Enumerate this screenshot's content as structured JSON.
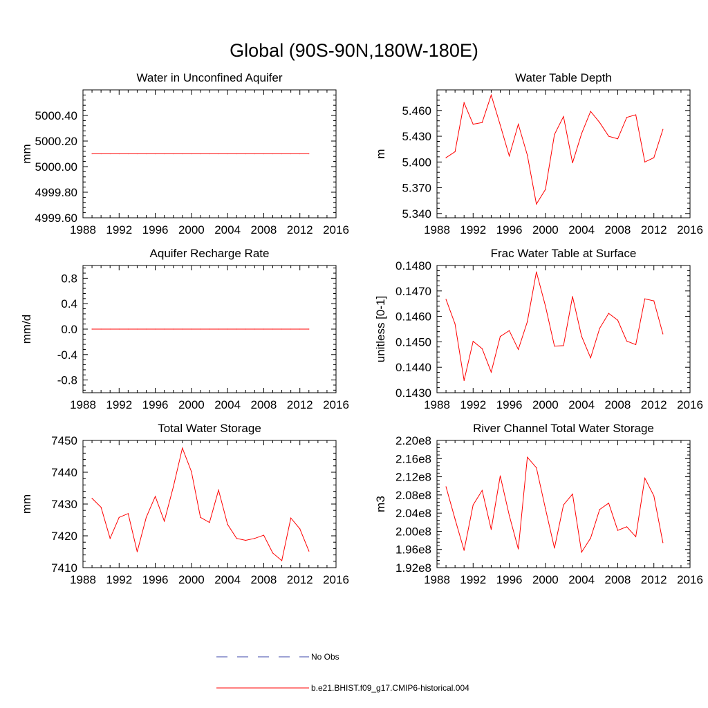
{
  "page_title": "Global (90S-90N,180W-180E)",
  "legend": {
    "position": "bottom",
    "entries": [
      {
        "label": "No Obs",
        "color": "#3b45a8",
        "dash": "dashed"
      },
      {
        "label": "b.e21.BHIST.f09_g17.CMIP6-historical.004",
        "color": "#ff0000",
        "dash": "solid"
      }
    ]
  },
  "chart_data": [
    {
      "type": "line",
      "title": "Water in Unconfined Aquifer",
      "ylabel": "mm",
      "xlim": [
        1988,
        2016
      ],
      "ylim": [
        4999.6,
        5000.6
      ],
      "xticks": [
        "1988",
        "1992",
        "1996",
        "2000",
        "2004",
        "2008",
        "2012",
        "2016"
      ],
      "yticks": [
        {
          "v": 4999.6,
          "label": "4999.60"
        },
        {
          "v": 4999.8,
          "label": "4999.80"
        },
        {
          "v": 5000.0,
          "label": "5000.00"
        },
        {
          "v": 5000.2,
          "label": "5000.20"
        },
        {
          "v": 5000.4,
          "label": "5000.40"
        }
      ],
      "series": [
        {
          "name": "b.e21.BHIST.f09_g17.CMIP6-historical.004",
          "color": "#ff0000",
          "x": [
            1989,
            1990,
            1991,
            1992,
            1993,
            1994,
            1995,
            1996,
            1997,
            1998,
            1999,
            2000,
            2001,
            2002,
            2003,
            2004,
            2005,
            2006,
            2007,
            2008,
            2009,
            2010,
            2011,
            2012,
            2013
          ],
          "y": [
            5000.1,
            5000.1,
            5000.1,
            5000.1,
            5000.1,
            5000.1,
            5000.1,
            5000.1,
            5000.1,
            5000.1,
            5000.1,
            5000.1,
            5000.1,
            5000.1,
            5000.1,
            5000.1,
            5000.1,
            5000.1,
            5000.1,
            5000.1,
            5000.1,
            5000.1,
            5000.1,
            5000.1,
            5000.1
          ]
        }
      ]
    },
    {
      "type": "line",
      "title": "Water Table Depth",
      "ylabel": "m",
      "xlim": [
        1988,
        2016
      ],
      "ylim": [
        5.335,
        5.484
      ],
      "xticks": [
        "1988",
        "1992",
        "1996",
        "2000",
        "2004",
        "2008",
        "2012",
        "2016"
      ],
      "yticks": [
        {
          "v": 5.34,
          "label": "5.340"
        },
        {
          "v": 5.37,
          "label": "5.370"
        },
        {
          "v": 5.4,
          "label": "5.400"
        },
        {
          "v": 5.43,
          "label": "5.430"
        },
        {
          "v": 5.46,
          "label": "5.460"
        }
      ],
      "series": [
        {
          "name": "b.e21.BHIST.f09_g17.CMIP6-historical.004",
          "color": "#ff0000",
          "x": [
            1989,
            1990,
            1991,
            1992,
            1993,
            1994,
            1995,
            1996,
            1997,
            1998,
            1999,
            2000,
            2001,
            2002,
            2003,
            2004,
            2005,
            2006,
            2007,
            2008,
            2009,
            2010,
            2011,
            2012,
            2013
          ],
          "y": [
            5.405,
            5.412,
            5.469,
            5.444,
            5.446,
            5.478,
            5.443,
            5.407,
            5.444,
            5.408,
            5.351,
            5.368,
            5.432,
            5.453,
            5.399,
            5.433,
            5.459,
            5.446,
            5.43,
            5.427,
            5.452,
            5.455,
            5.4,
            5.405,
            5.438
          ]
        }
      ]
    },
    {
      "type": "line",
      "title": "Aquifer Recharge Rate",
      "ylabel": "mm/d",
      "xlim": [
        1988,
        2016
      ],
      "ylim": [
        -1.0,
        1.0
      ],
      "xticks": [
        "1988",
        "1992",
        "1996",
        "2000",
        "2004",
        "2008",
        "2012",
        "2016"
      ],
      "yticks": [
        {
          "v": -0.8,
          "label": "-0.8"
        },
        {
          "v": -0.4,
          "label": "-0.4"
        },
        {
          "v": 0.0,
          "label": "0.0"
        },
        {
          "v": 0.4,
          "label": "0.4"
        },
        {
          "v": 0.8,
          "label": "0.8"
        }
      ],
      "series": [
        {
          "name": "b.e21.BHIST.f09_g17.CMIP6-historical.004",
          "color": "#ff0000",
          "x": [
            1989,
            1990,
            1991,
            1992,
            1993,
            1994,
            1995,
            1996,
            1997,
            1998,
            1999,
            2000,
            2001,
            2002,
            2003,
            2004,
            2005,
            2006,
            2007,
            2008,
            2009,
            2010,
            2011,
            2012,
            2013
          ],
          "y": [
            0,
            0,
            0,
            0,
            0,
            0,
            0,
            0,
            0,
            0,
            0,
            0,
            0,
            0,
            0,
            0,
            0,
            0,
            0,
            0,
            0,
            0,
            0,
            0,
            0
          ]
        }
      ]
    },
    {
      "type": "line",
      "title": "Frac Water Table at Surface",
      "ylabel": "unitless [0-1]",
      "xlim": [
        1988,
        2016
      ],
      "ylim": [
        0.143,
        0.148
      ],
      "xticks": [
        "1988",
        "1992",
        "1996",
        "2000",
        "2004",
        "2008",
        "2012",
        "2016"
      ],
      "yticks": [
        {
          "v": 0.143,
          "label": "0.1430"
        },
        {
          "v": 0.144,
          "label": "0.1440"
        },
        {
          "v": 0.145,
          "label": "0.1450"
        },
        {
          "v": 0.146,
          "label": "0.1460"
        },
        {
          "v": 0.147,
          "label": "0.1470"
        },
        {
          "v": 0.148,
          "label": "0.1480"
        }
      ],
      "series": [
        {
          "name": "b.e21.BHIST.f09_g17.CMIP6-historical.004",
          "color": "#ff0000",
          "x": [
            1989,
            1990,
            1991,
            1992,
            1993,
            1994,
            1995,
            1996,
            1997,
            1998,
            1999,
            2000,
            2001,
            2002,
            2003,
            2004,
            2005,
            2006,
            2007,
            2008,
            2009,
            2010,
            2011,
            2012,
            2013
          ],
          "y": [
            0.14667,
            0.1457,
            0.14348,
            0.14502,
            0.14473,
            0.14381,
            0.14521,
            0.14544,
            0.1447,
            0.14579,
            0.14775,
            0.14641,
            0.14483,
            0.14485,
            0.14678,
            0.14522,
            0.14437,
            0.14553,
            0.14612,
            0.14585,
            0.14503,
            0.14489,
            0.14669,
            0.14661,
            0.14531
          ]
        }
      ]
    },
    {
      "type": "line",
      "title": "Total Water Storage",
      "ylabel": "mm",
      "xlim": [
        1988,
        2016
      ],
      "ylim": [
        7410,
        7450
      ],
      "xticks": [
        "1988",
        "1992",
        "1996",
        "2000",
        "2004",
        "2008",
        "2012",
        "2016"
      ],
      "yticks": [
        {
          "v": 7410,
          "label": "7410"
        },
        {
          "v": 7420,
          "label": "7420"
        },
        {
          "v": 7430,
          "label": "7430"
        },
        {
          "v": 7440,
          "label": "7440"
        },
        {
          "v": 7450,
          "label": "7450"
        }
      ],
      "series": [
        {
          "name": "b.e21.BHIST.f09_g17.CMIP6-historical.004",
          "color": "#ff0000",
          "x": [
            1989,
            1990,
            1991,
            1992,
            1993,
            1994,
            1995,
            1996,
            1997,
            1998,
            1999,
            2000,
            2001,
            2002,
            2003,
            2004,
            2005,
            2006,
            2007,
            2008,
            2009,
            2010,
            2011,
            2012,
            2013
          ],
          "y": [
            7431.8,
            7429.0,
            7419.2,
            7425.8,
            7427.0,
            7415.0,
            7425.8,
            7432.4,
            7424.6,
            7435.4,
            7447.6,
            7440.2,
            7425.8,
            7424.2,
            7434.4,
            7423.6,
            7419.2,
            7418.6,
            7419.2,
            7420.2,
            7414.6,
            7412.2,
            7425.6,
            7422.2,
            7415.2
          ]
        }
      ]
    },
    {
      "type": "line",
      "title": "River Channel Total Water Storage",
      "ylabel": "m3",
      "xlim": [
        1988,
        2016
      ],
      "ylim": [
        192000000.0,
        220000000.0
      ],
      "xticks": [
        "1988",
        "1992",
        "1996",
        "2000",
        "2004",
        "2008",
        "2012",
        "2016"
      ],
      "yticks": [
        {
          "v": 192000000.0,
          "label": "1.92e8"
        },
        {
          "v": 196000000.0,
          "label": "1.96e8"
        },
        {
          "v": 200000000.0,
          "label": "2.00e8"
        },
        {
          "v": 204000000.0,
          "label": "2.04e8"
        },
        {
          "v": 208000000.0,
          "label": "2.08e8"
        },
        {
          "v": 212000000.0,
          "label": "2.12e8"
        },
        {
          "v": 216000000.0,
          "label": "2.16e8"
        },
        {
          "v": 220000000.0,
          "label": "2.20e8"
        }
      ],
      "series": [
        {
          "name": "b.e21.BHIST.f09_g17.CMIP6-historical.004",
          "color": "#ff0000",
          "x": [
            1989,
            1990,
            1991,
            1992,
            1993,
            1994,
            1995,
            1996,
            1997,
            1998,
            1999,
            2000,
            2001,
            2002,
            2003,
            2004,
            2005,
            2006,
            2007,
            2008,
            2009,
            2010,
            2011,
            2012,
            2013
          ],
          "y": [
            209800000.0,
            202700000.0,
            195800000.0,
            205800000.0,
            209000000.0,
            200400000.0,
            212200000.0,
            203500000.0,
            196100000.0,
            216300000.0,
            214000000.0,
            205000000.0,
            196300000.0,
            205800000.0,
            208200000.0,
            195400000.0,
            198500000.0,
            204800000.0,
            206200000.0,
            200200000.0,
            201000000.0,
            198800000.0,
            211700000.0,
            207800000.0,
            197500000.0
          ]
        }
      ]
    }
  ]
}
